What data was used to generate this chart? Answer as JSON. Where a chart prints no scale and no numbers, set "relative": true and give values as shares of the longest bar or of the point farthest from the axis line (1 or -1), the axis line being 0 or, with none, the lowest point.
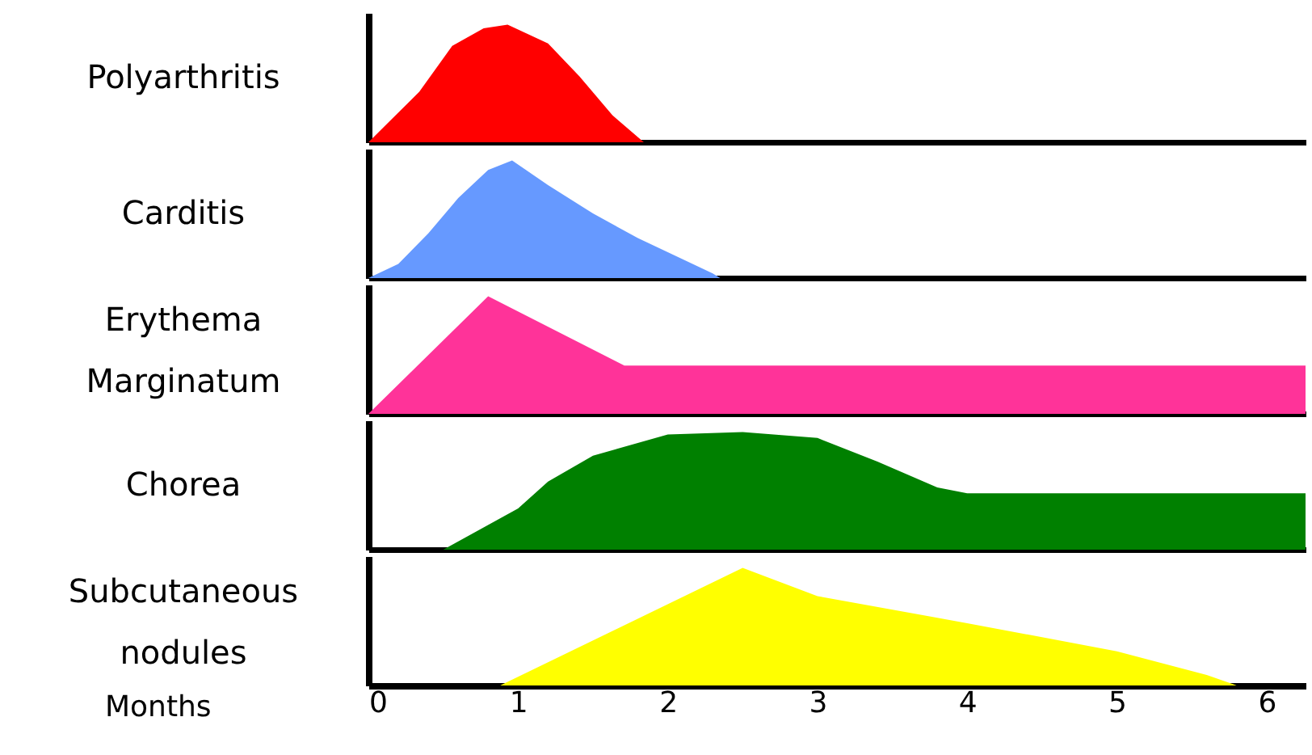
{
  "chart_data": [
    {
      "type": "area",
      "relative": true,
      "ylabel": "Polyarthritis",
      "color": "#ff0000",
      "xlim": [
        0,
        6.26
      ],
      "tick_labels": false,
      "x": [
        0,
        0.34,
        0.56,
        0.77,
        0.93,
        1.2,
        1.41,
        1.63,
        1.84
      ],
      "values": [
        0,
        0.43,
        0.82,
        0.97,
        1.0,
        0.84,
        0.56,
        0.23,
        0
      ]
    },
    {
      "type": "area",
      "relative": true,
      "ylabel": "Carditis",
      "color": "#6699ff",
      "xlim": [
        0,
        6.26
      ],
      "tick_labels": false,
      "x": [
        0,
        0.2,
        0.4,
        0.6,
        0.8,
        0.96,
        1.2,
        1.5,
        1.8,
        2.1,
        2.3,
        2.35
      ],
      "values": [
        0,
        0.12,
        0.38,
        0.68,
        0.92,
        1,
        0.79,
        0.55,
        0.34,
        0.16,
        0.04,
        0
      ]
    },
    {
      "type": "area",
      "relative": true,
      "ylabel": "Erythema Marginatum",
      "color": "#ff3399",
      "xlim": [
        0,
        6.26
      ],
      "tick_labels": false,
      "x": [
        0,
        0.8,
        1.71,
        6.26
      ],
      "values": [
        0,
        1,
        0.41,
        0.41
      ]
    },
    {
      "type": "area",
      "relative": true,
      "ylabel": "Chorea",
      "color": "#008000",
      "xlim": [
        0,
        6.26
      ],
      "tick_labels": false,
      "x": [
        0.5,
        1.0,
        1.2,
        1.5,
        2.0,
        2.5,
        3.0,
        3.4,
        3.8,
        4.0,
        6.26
      ],
      "values": [
        0,
        0.35,
        0.58,
        0.8,
        0.98,
        1,
        0.95,
        0.75,
        0.53,
        0.48,
        0.48
      ]
    },
    {
      "type": "area",
      "relative": true,
      "ylabel": "Subcutaneous nodules",
      "color": "#ffff00",
      "xlim": [
        0,
        6.26
      ],
      "xticks": [
        0,
        1,
        2,
        3,
        4,
        5,
        6
      ],
      "annotations": [
        "Months"
      ],
      "x": [
        0.88,
        2.5,
        3.0,
        4.0,
        5.0,
        5.6,
        5.8
      ],
      "values": [
        0,
        1,
        0.76,
        0.53,
        0.29,
        0.09,
        0
      ]
    }
  ]
}
